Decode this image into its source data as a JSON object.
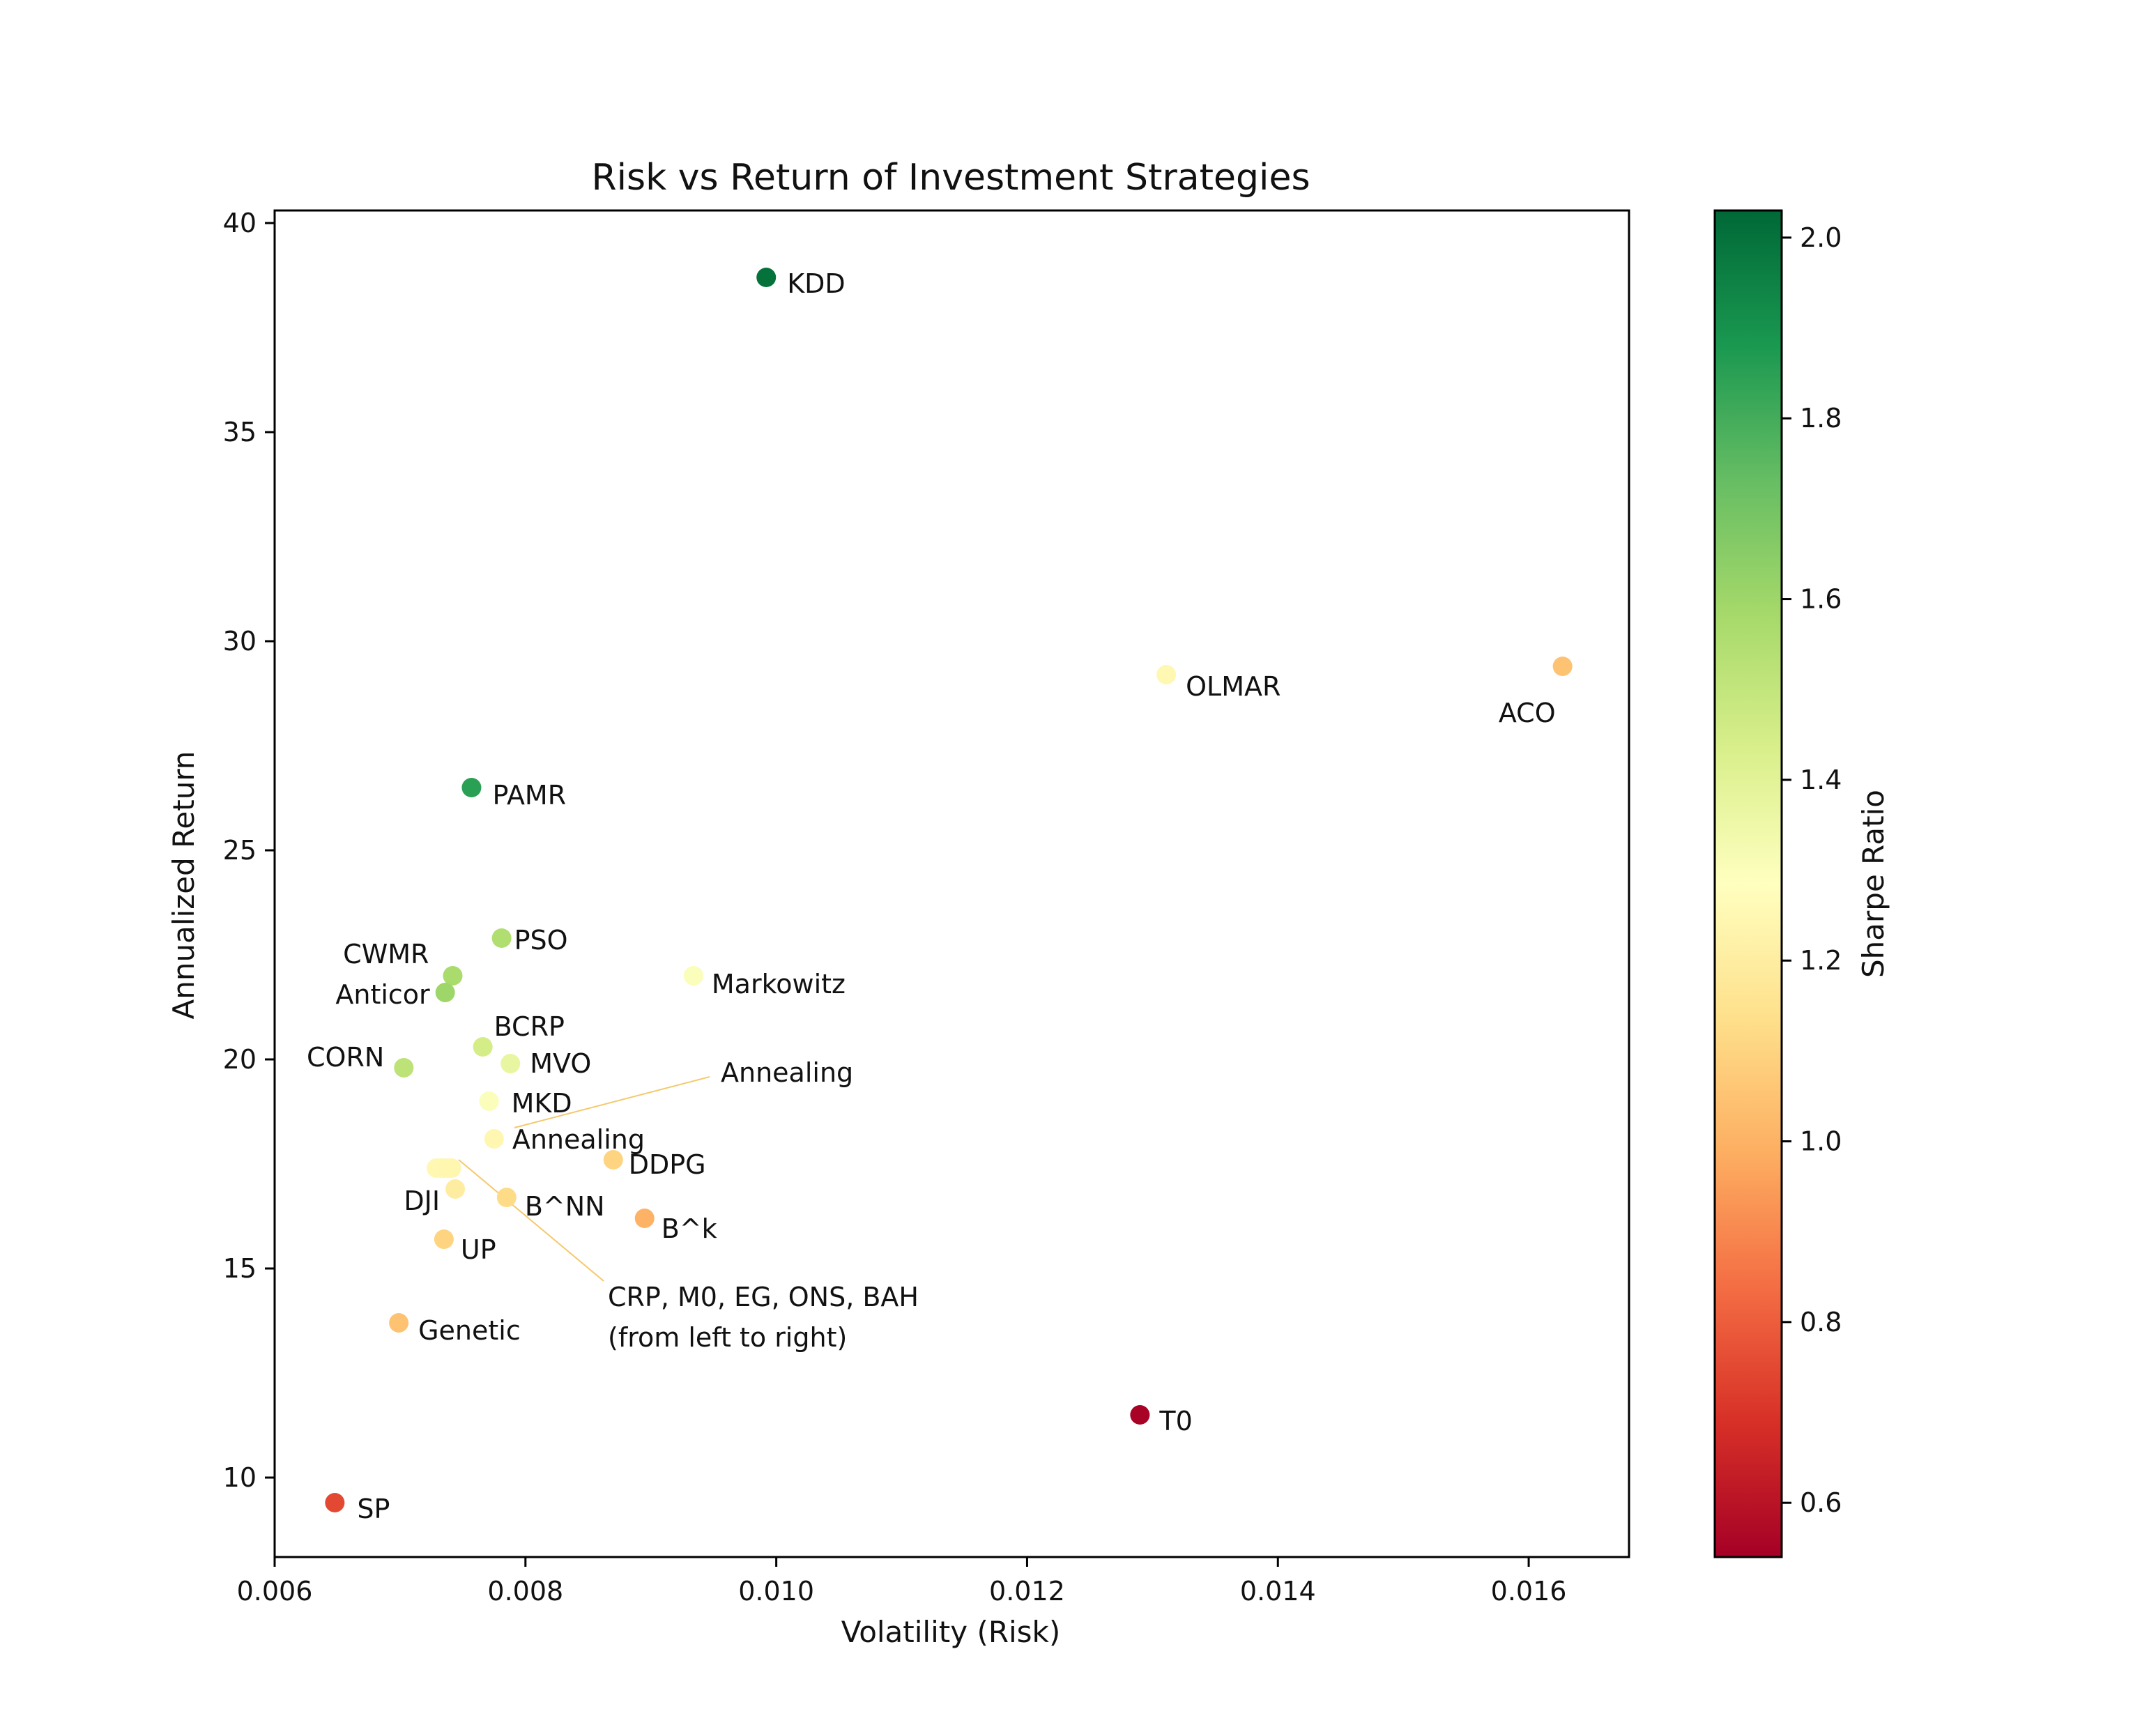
{
  "chart_data": {
    "type": "scatter",
    "title": "Risk vs Return of Investment Strategies",
    "xlabel": "Volatility (Risk)",
    "ylabel": "Annualized Return",
    "xlim": [
      0.006,
      0.0168
    ],
    "ylim": [
      8.1,
      40.3
    ],
    "xticks": [
      0.006,
      0.008,
      0.01,
      0.012,
      0.014,
      0.016
    ],
    "xtick_labels": [
      "0.006",
      "0.008",
      "0.010",
      "0.012",
      "0.014",
      "0.016"
    ],
    "yticks": [
      10,
      15,
      20,
      25,
      30,
      35,
      40
    ],
    "ytick_labels": [
      "10",
      "15",
      "20",
      "25",
      "30",
      "35",
      "40"
    ],
    "grid": false,
    "colorbar": {
      "label": "Sharpe Ratio",
      "colormap": "RdYlGn",
      "range": [
        0.54,
        2.03
      ],
      "ticks": [
        0.6,
        0.8,
        1.0,
        1.2,
        1.4,
        1.6,
        1.8,
        2.0
      ],
      "tick_labels": [
        "0.6",
        "0.8",
        "1.0",
        "1.2",
        "1.4",
        "1.6",
        "1.8",
        "2.0"
      ]
    },
    "points": [
      {
        "name": "KDD",
        "label": "KDD",
        "x": 0.00992,
        "y": 38.7,
        "sharpe": 2.0
      },
      {
        "name": "OLMAR",
        "label": "OLMAR",
        "x": 0.01311,
        "y": 29.2,
        "sharpe": 1.25
      },
      {
        "name": "ACO",
        "label": "ACO",
        "x": 0.01627,
        "y": 29.4,
        "sharpe": 1.05
      },
      {
        "name": "PAMR",
        "label": "PAMR",
        "x": 0.00757,
        "y": 26.5,
        "sharpe": 1.85
      },
      {
        "name": "PSO",
        "label": "PSO",
        "x": 0.00781,
        "y": 22.9,
        "sharpe": 1.55
      },
      {
        "name": "CWMR",
        "label": "CWMR",
        "x": 0.00742,
        "y": 22.0,
        "sharpe": 1.57
      },
      {
        "name": "Anticor",
        "label": "Anticor",
        "x": 0.00736,
        "y": 21.6,
        "sharpe": 1.6
      },
      {
        "name": "Markowitz",
        "label": "Markowitz",
        "x": 0.00934,
        "y": 22.0,
        "sharpe": 1.3
      },
      {
        "name": "BCRP",
        "label": "BCRP",
        "x": 0.00766,
        "y": 20.3,
        "sharpe": 1.45
      },
      {
        "name": "CORN",
        "label": "CORN",
        "x": 0.00703,
        "y": 19.8,
        "sharpe": 1.52
      },
      {
        "name": "MVO",
        "label": "MVO",
        "x": 0.00788,
        "y": 19.9,
        "sharpe": 1.37
      },
      {
        "name": "MKD",
        "label": "MKD",
        "x": 0.00771,
        "y": 19.0,
        "sharpe": 1.3
      },
      {
        "name": "Annealing",
        "label": "Annealing",
        "x": 0.00775,
        "y": 18.1,
        "sharpe": 1.24
      },
      {
        "name": "DDPG",
        "label": "DDPG",
        "x": 0.0087,
        "y": 17.6,
        "sharpe": 1.1
      },
      {
        "name": "CRP",
        "label": "",
        "x": 0.00729,
        "y": 17.4,
        "sharpe": 1.25
      },
      {
        "name": "M0",
        "label": "",
        "x": 0.00732,
        "y": 17.4,
        "sharpe": 1.25
      },
      {
        "name": "EG",
        "label": "",
        "x": 0.00735,
        "y": 17.4,
        "sharpe": 1.25
      },
      {
        "name": "ONS",
        "label": "",
        "x": 0.00738,
        "y": 17.4,
        "sharpe": 1.24
      },
      {
        "name": "BAH",
        "label": "",
        "x": 0.00741,
        "y": 17.4,
        "sharpe": 1.24
      },
      {
        "name": "DJI",
        "label": "DJI",
        "x": 0.00744,
        "y": 16.9,
        "sharpe": 1.2
      },
      {
        "name": "B^NN",
        "label": "B^NN",
        "x": 0.00785,
        "y": 16.7,
        "sharpe": 1.12
      },
      {
        "name": "B^k",
        "label": "B^k",
        "x": 0.00895,
        "y": 16.2,
        "sharpe": 1.0
      },
      {
        "name": "UP",
        "label": "UP",
        "x": 0.00735,
        "y": 15.7,
        "sharpe": 1.1
      },
      {
        "name": "Genetic",
        "label": "Genetic",
        "x": 0.00699,
        "y": 13.7,
        "sharpe": 1.05
      },
      {
        "name": "T0",
        "label": "T0",
        "x": 0.0129,
        "y": 11.5,
        "sharpe": 0.55
      },
      {
        "name": "SP",
        "label": "SP",
        "x": 0.00648,
        "y": 9.4,
        "sharpe": 0.75
      }
    ],
    "annotations": [
      {
        "name": "annealing-callout",
        "lines": [
          "Annealing"
        ]
      },
      {
        "name": "crp-group-callout",
        "lines": [
          "CRP, M0, EG, ONS, BAH",
          "(from left to right)"
        ]
      }
    ]
  }
}
